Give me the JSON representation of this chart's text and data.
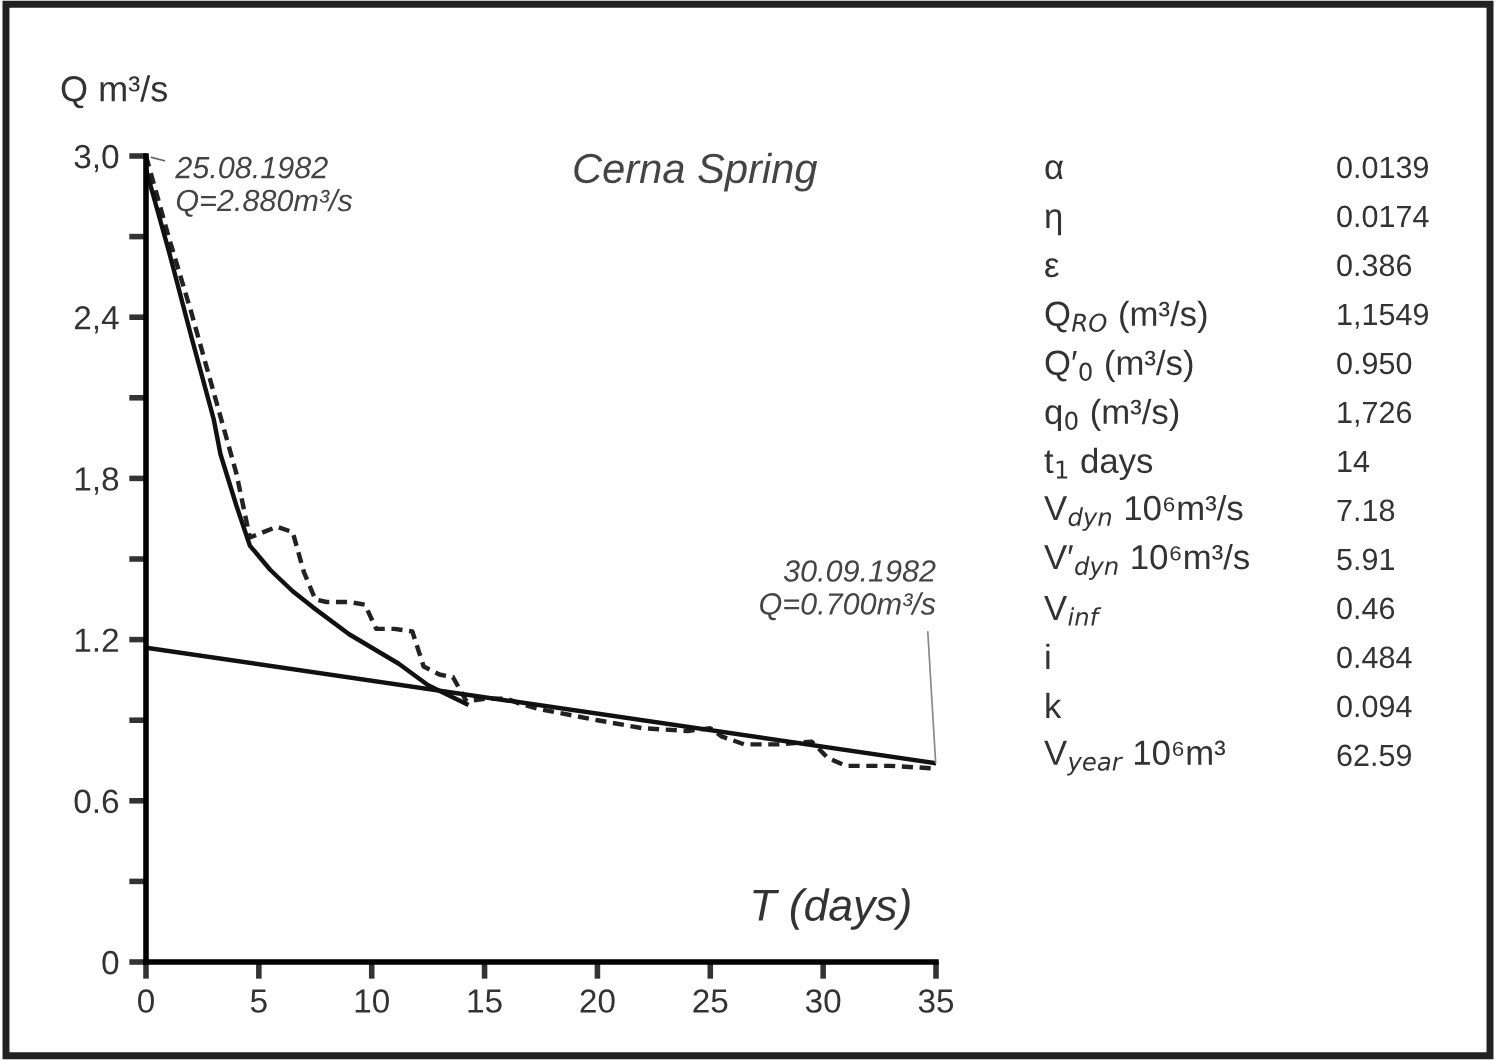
{
  "chart_data": {
    "type": "line",
    "title": "Cerna Spring",
    "xlabel": "T (days)",
    "ylabel": "Q m³/s",
    "xlim": [
      0,
      35
    ],
    "xticks": [
      0,
      5,
      10,
      15,
      20,
      25,
      30,
      35
    ],
    "ylim": [
      0,
      3.0
    ],
    "yticks": [
      0,
      {
        "value": 0.3,
        "label": null
      },
      {
        "value": 0.6,
        "label": "0.6"
      },
      {
        "value": 0.9,
        "label": null
      },
      {
        "value": 1.2,
        "label": "1.2"
      },
      {
        "value": 1.5,
        "label": null
      },
      {
        "value": 1.8,
        "label": "1,8"
      },
      {
        "value": 2.1,
        "label": null
      },
      {
        "value": 2.4,
        "label": "2,4"
      },
      {
        "value": 2.7,
        "label": null
      },
      {
        "value": 3.0,
        "label": "3,0"
      }
    ],
    "grid": false,
    "legend": false,
    "series": [
      {
        "color": "#222222",
        "line_style": "dashed",
        "x": [
          0,
          0.5,
          1,
          2,
          3,
          4,
          4.6,
          5.2,
          5.8,
          6.5,
          7,
          7.5,
          8,
          9,
          9.7,
          10.2,
          11,
          11.8,
          12.3,
          13,
          13.6,
          14.2,
          15,
          16,
          16.6,
          17.5,
          20,
          22,
          24,
          25,
          25.5,
          26.5,
          28,
          29.5,
          30.2,
          31,
          33,
          35
        ],
        "values": [
          3.0,
          2.85,
          2.7,
          2.42,
          2.12,
          1.82,
          1.58,
          1.6,
          1.62,
          1.6,
          1.45,
          1.35,
          1.34,
          1.34,
          1.33,
          1.24,
          1.24,
          1.23,
          1.1,
          1.07,
          1.06,
          0.97,
          0.98,
          0.98,
          0.96,
          0.94,
          0.9,
          0.87,
          0.86,
          0.87,
          0.84,
          0.81,
          0.81,
          0.82,
          0.76,
          0.73,
          0.73,
          0.72
        ]
      },
      {
        "color": "#111111",
        "line_style": "solid",
        "x": [
          0,
          0.5,
          1,
          2,
          3,
          3.3,
          4,
          4.6,
          5.5,
          6.5,
          7.4,
          9,
          11.2,
          12.5,
          14.2
        ],
        "values": [
          2.95,
          2.8,
          2.65,
          2.33,
          2.02,
          1.89,
          1.7,
          1.55,
          1.46,
          1.38,
          1.32,
          1.22,
          1.11,
          1.03,
          0.96
        ]
      },
      {
        "color": "#111111",
        "line_style": "solid",
        "x": [
          0,
          35
        ],
        "values": [
          1.17,
          0.74
        ]
      }
    ],
    "annotations": [
      {
        "text": "25.08.1982\nQ=2.880m³/s",
        "x": 0,
        "y": 3.0
      },
      {
        "text": "30.09.1982\nQ=0.700m³/s",
        "x": 35,
        "y": 0.72
      },
      "α",
      "0.0139",
      "η",
      "0.0174",
      "ε",
      "0.386",
      "Q$_{RO}$ (m³/s)",
      "1,1549",
      "Q′$_{0}$ (m³/s)",
      "0.950",
      "q$_{0}$ (m³/s)",
      "1,726",
      "t$_{1}$ days",
      "14",
      "V$_{dyn}$ 10⁶m³/s",
      "7.18",
      "V′$_{dyn}$ 10⁶m³/s",
      "5.91",
      "V$_{inf}$",
      "0.46",
      "i",
      "0.484",
      "k",
      "0.094",
      "V$_{year}$ 10⁶m³",
      "62.59"
    ]
  }
}
